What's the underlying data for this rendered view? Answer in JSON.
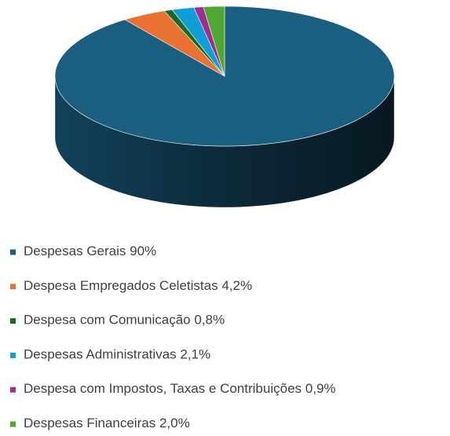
{
  "chart_data": {
    "type": "pie3d",
    "categories": [
      "Despesas Gerais",
      "Despesa Empregados Celetistas",
      "Despesa com Comunicação",
      "Despesas Administrativas",
      "Despesa com Impostos, Taxas e Contribuições",
      "Despesas Financeiras"
    ],
    "values": [
      90,
      4.2,
      0.8,
      2.1,
      0.9,
      2.0
    ],
    "value_labels": [
      "90%",
      "4,2%",
      "0,8%",
      "2,1%",
      "0,9%",
      "2,0%"
    ],
    "colors": [
      "#1a5e80",
      "#e97132",
      "#196b24",
      "#0f9ed5",
      "#a02b93",
      "#4ea72e"
    ],
    "legend": "bottom"
  }
}
